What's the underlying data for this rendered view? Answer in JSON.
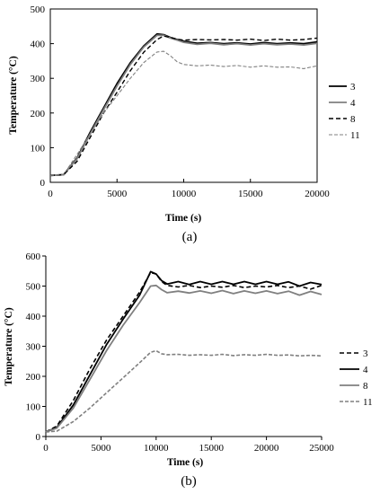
{
  "chart_data": [
    {
      "type": "line",
      "panel_label": "(a)",
      "xlabel": "Time (s)",
      "ylabel": "Temperature (°C)",
      "xlim": [
        0,
        20000
      ],
      "ylim": [
        0,
        500
      ],
      "xticks": [
        0,
        5000,
        10000,
        15000,
        20000
      ],
      "yticks": [
        0,
        100,
        200,
        300,
        400,
        500
      ],
      "grid": false,
      "legend": "right",
      "series": [
        {
          "name": "3",
          "color": "#000000",
          "dash": "solid",
          "width": 1.8,
          "x": [
            0,
            1000,
            2000,
            3000,
            4000,
            5000,
            6000,
            7000,
            8000,
            8500,
            9000,
            9500,
            10000,
            11000,
            12000,
            13000,
            14000,
            15000,
            16000,
            17000,
            18000,
            19000,
            20000
          ],
          "y": [
            20,
            22,
            70,
            145,
            215,
            285,
            345,
            393,
            428,
            426,
            418,
            412,
            407,
            401,
            403,
            400,
            402,
            399,
            403,
            400,
            402,
            400,
            405
          ]
        },
        {
          "name": "4",
          "color": "#808080",
          "dash": "solid",
          "width": 1.8,
          "x": [
            0,
            1000,
            2000,
            3000,
            4000,
            5000,
            6000,
            7000,
            8000,
            8500,
            9000,
            9500,
            10000,
            11000,
            12000,
            13000,
            14000,
            15000,
            16000,
            17000,
            18000,
            19000,
            20000
          ],
          "y": [
            20,
            22,
            68,
            140,
            210,
            278,
            340,
            390,
            424,
            424,
            416,
            410,
            404,
            398,
            401,
            397,
            400,
            396,
            400,
            397,
            399,
            396,
            401
          ]
        },
        {
          "name": "8",
          "color": "#000000",
          "dash": "5,3",
          "width": 1.4,
          "x": [
            0,
            1000,
            2000,
            3000,
            4000,
            5000,
            6000,
            7000,
            8000,
            8500,
            9000,
            9500,
            10000,
            11000,
            12000,
            13000,
            14000,
            15000,
            16000,
            17000,
            18000,
            19000,
            20000
          ],
          "y": [
            20,
            22,
            60,
            130,
            200,
            260,
            322,
            375,
            412,
            422,
            418,
            413,
            410,
            412,
            411,
            412,
            410,
            413,
            409,
            413,
            410,
            412,
            416
          ]
        },
        {
          "name": "11",
          "color": "#808080",
          "dash": "4,2",
          "width": 1.1,
          "x": [
            0,
            1000,
            2000,
            3000,
            4000,
            5000,
            6000,
            7000,
            8000,
            8500,
            9000,
            9500,
            10000,
            11000,
            12000,
            13000,
            14000,
            15000,
            16000,
            17000,
            18000,
            19000,
            20000
          ],
          "y": [
            20,
            22,
            80,
            140,
            200,
            250,
            300,
            345,
            376,
            378,
            365,
            348,
            340,
            336,
            338,
            334,
            337,
            332,
            336,
            332,
            333,
            328,
            336
          ]
        }
      ]
    },
    {
      "type": "line",
      "panel_label": "(b)",
      "xlabel": "Time (s)",
      "ylabel": "Temperature (°C)",
      "xlim": [
        0,
        25000
      ],
      "ylim": [
        0,
        600
      ],
      "xticks": [
        0,
        5000,
        10000,
        15000,
        20000,
        25000
      ],
      "yticks": [
        0,
        100,
        200,
        300,
        400,
        500,
        600
      ],
      "grid": false,
      "legend": "right",
      "series": [
        {
          "name": "3",
          "color": "#000000",
          "dash": "5,3",
          "width": 1.6,
          "x": [
            0,
            1000,
            2500,
            4000,
            5500,
            7000,
            8500,
            9500,
            10000,
            10500,
            11000,
            12000,
            13000,
            14000,
            15000,
            16000,
            17000,
            18000,
            19000,
            20000,
            21000,
            22000,
            23000,
            24000,
            25000
          ],
          "y": [
            15,
            35,
            120,
            225,
            320,
            400,
            480,
            545,
            540,
            515,
            502,
            497,
            502,
            495,
            500,
            496,
            502,
            495,
            500,
            497,
            502,
            495,
            500,
            490,
            502
          ]
        },
        {
          "name": "4",
          "color": "#000000",
          "dash": "solid",
          "width": 1.8,
          "x": [
            0,
            1000,
            2500,
            4000,
            5500,
            7000,
            8500,
            9500,
            10000,
            10500,
            11000,
            12000,
            13000,
            14000,
            15000,
            16000,
            17000,
            18000,
            19000,
            20000,
            21000,
            22000,
            23000,
            24000,
            25000
          ],
          "y": [
            15,
            30,
            105,
            205,
            305,
            390,
            470,
            548,
            540,
            518,
            507,
            515,
            505,
            515,
            506,
            515,
            506,
            515,
            506,
            515,
            506,
            514,
            500,
            512,
            505
          ]
        },
        {
          "name": "8",
          "color": "#808080",
          "dash": "solid",
          "width": 1.8,
          "x": [
            0,
            1000,
            2500,
            4000,
            5500,
            7000,
            8500,
            9500,
            10000,
            10500,
            11000,
            12000,
            13000,
            14000,
            15000,
            16000,
            17000,
            18000,
            19000,
            20000,
            21000,
            22000,
            23000,
            24000,
            25000
          ],
          "y": [
            15,
            28,
            95,
            190,
            285,
            370,
            445,
            500,
            502,
            488,
            478,
            483,
            477,
            484,
            476,
            485,
            475,
            484,
            476,
            484,
            475,
            483,
            470,
            482,
            472
          ]
        },
        {
          "name": "11",
          "color": "#808080",
          "dash": "4,2",
          "width": 1.6,
          "x": [
            0,
            1000,
            2500,
            4000,
            5500,
            7000,
            8500,
            9500,
            10000,
            10500,
            11000,
            12000,
            13000,
            14000,
            15000,
            16000,
            17000,
            18000,
            19000,
            20000,
            21000,
            22000,
            23000,
            24000,
            25000
          ],
          "y": [
            15,
            18,
            50,
            95,
            145,
            195,
            245,
            280,
            285,
            275,
            272,
            273,
            270,
            272,
            270,
            273,
            269,
            272,
            270,
            273,
            270,
            271,
            268,
            270,
            268
          ]
        }
      ]
    }
  ]
}
